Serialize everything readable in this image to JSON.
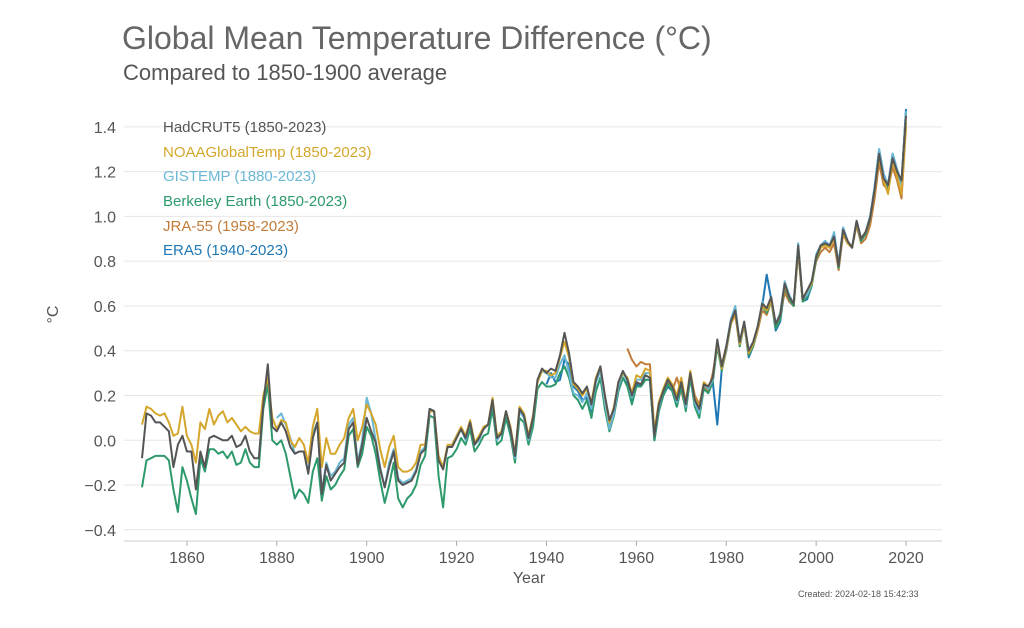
{
  "chart_data": {
    "type": "line",
    "title": "Global Mean Temperature Difference (°C)",
    "subtitle": "Compared to 1850-1900 average",
    "xlabel": "Year",
    "ylabel": "°C",
    "xlim": [
      1846,
      2028
    ],
    "ylim": [
      -0.45,
      1.52
    ],
    "x_ticks": [
      1860,
      1880,
      1900,
      1920,
      1940,
      1960,
      1980,
      2000,
      2020
    ],
    "y_ticks": [
      -0.4,
      -0.2,
      0.0,
      0.2,
      0.4,
      0.6,
      0.8,
      1.0,
      1.2,
      1.4
    ],
    "y_tick_labels": [
      "−0.4",
      "−0.2",
      "0.0",
      "0.2",
      "0.4",
      "0.6",
      "0.8",
      "1.0",
      "1.2",
      "1.4"
    ],
    "grid": true,
    "legend_position": "top-left",
    "created": "Created: 2024-02-18 15:42:33",
    "series": [
      {
        "name": "HadCRUT5 (1850-2023)",
        "color": "#555555",
        "start": 1850,
        "values": [
          -0.08,
          0.12,
          0.11,
          0.08,
          0.08,
          0.06,
          0.04,
          -0.12,
          -0.02,
          0.02,
          -0.05,
          -0.05,
          -0.22,
          -0.05,
          -0.12,
          0.01,
          0.02,
          0.01,
          0.0,
          0.0,
          0.02,
          -0.03,
          -0.02,
          0.02,
          -0.05,
          -0.08,
          -0.08,
          0.16,
          0.34,
          0.06,
          0.04,
          0.08,
          0.04,
          -0.03,
          -0.06,
          -0.05,
          -0.05,
          -0.15,
          0.01,
          0.08,
          -0.24,
          -0.11,
          -0.18,
          -0.15,
          -0.12,
          -0.1,
          0.05,
          0.08,
          -0.11,
          -0.02,
          0.1,
          0.04,
          -0.01,
          -0.13,
          -0.21,
          -0.12,
          -0.05,
          -0.18,
          -0.2,
          -0.19,
          -0.18,
          -0.14,
          -0.06,
          -0.04,
          0.14,
          0.13,
          -0.09,
          -0.13,
          -0.03,
          -0.03,
          0.01,
          0.05,
          0.01,
          0.08,
          -0.02,
          0.01,
          0.05,
          0.07,
          0.18,
          0.01,
          0.03,
          0.13,
          0.05,
          -0.07,
          0.14,
          0.11,
          0.01,
          0.1,
          0.27,
          0.32,
          0.3,
          0.32,
          0.31,
          0.38,
          0.48,
          0.39,
          0.26,
          0.24,
          0.21,
          0.24,
          0.16,
          0.27,
          0.33,
          0.2,
          0.09,
          0.14,
          0.26,
          0.31,
          0.27,
          0.2,
          0.26,
          0.25,
          0.29,
          0.28,
          0.02,
          0.16,
          0.22,
          0.27,
          0.24,
          0.18,
          0.26,
          0.16,
          0.3,
          0.18,
          0.14,
          0.25,
          0.24,
          0.28,
          0.45,
          0.33,
          0.42,
          0.53,
          0.58,
          0.44,
          0.53,
          0.4,
          0.44,
          0.51,
          0.61,
          0.59,
          0.64,
          0.52,
          0.56,
          0.7,
          0.64,
          0.61,
          0.87,
          0.63,
          0.67,
          0.71,
          0.82,
          0.87,
          0.88,
          0.87,
          0.91,
          0.78,
          0.94,
          0.89,
          0.86,
          0.98,
          0.9,
          0.93,
          0.99,
          1.12,
          1.28,
          1.17,
          1.14,
          1.26,
          1.2,
          1.16,
          1.45
        ]
      },
      {
        "name": "NOAAGlobalTemp (1850-2023)",
        "color": "#d4a72c",
        "start": 1850,
        "values": [
          0.07,
          0.15,
          0.14,
          0.12,
          0.11,
          0.12,
          0.08,
          0.02,
          0.03,
          0.15,
          0.02,
          -0.02,
          -0.1,
          0.08,
          0.05,
          0.14,
          0.07,
          0.11,
          0.13,
          0.08,
          0.1,
          0.07,
          0.04,
          0.06,
          0.04,
          0.03,
          0.03,
          0.2,
          0.28,
          0.1,
          0.05,
          0.09,
          0.08,
          0.0,
          -0.03,
          0.01,
          -0.02,
          -0.1,
          0.06,
          0.14,
          -0.12,
          0.01,
          -0.06,
          -0.06,
          -0.02,
          0.01,
          0.1,
          0.14,
          0.0,
          0.06,
          0.16,
          0.12,
          0.07,
          -0.04,
          -0.12,
          -0.03,
          0.02,
          -0.12,
          -0.14,
          -0.14,
          -0.13,
          -0.1,
          -0.02,
          -0.02,
          0.13,
          0.13,
          -0.07,
          -0.12,
          -0.02,
          -0.02,
          0.02,
          0.06,
          0.02,
          0.09,
          -0.01,
          0.02,
          0.06,
          0.07,
          0.19,
          0.02,
          0.04,
          0.13,
          0.06,
          -0.06,
          0.15,
          0.12,
          0.02,
          0.11,
          0.26,
          0.31,
          0.31,
          0.29,
          0.3,
          0.37,
          0.44,
          0.37,
          0.25,
          0.23,
          0.2,
          0.23,
          0.17,
          0.28,
          0.33,
          0.2,
          0.08,
          0.15,
          0.26,
          0.3,
          0.28,
          0.21,
          0.29,
          0.28,
          0.32,
          0.31,
          0.04,
          0.17,
          0.23,
          0.28,
          0.25,
          0.2,
          0.28,
          0.17,
          0.31,
          0.19,
          0.15,
          0.26,
          0.24,
          0.28,
          0.44,
          0.32,
          0.41,
          0.52,
          0.57,
          0.43,
          0.52,
          0.39,
          0.43,
          0.5,
          0.6,
          0.58,
          0.62,
          0.52,
          0.56,
          0.69,
          0.64,
          0.61,
          0.86,
          0.63,
          0.67,
          0.7,
          0.82,
          0.86,
          0.87,
          0.86,
          0.9,
          0.78,
          0.93,
          0.88,
          0.86,
          0.97,
          0.9,
          0.93,
          0.99,
          1.11,
          1.27,
          1.16,
          1.1,
          1.25,
          1.18,
          1.1,
          1.42
        ]
      },
      {
        "name": "GISTEMP (1880-2023)",
        "color": "#6bb7d6",
        "start": 1880,
        "values": [
          0.1,
          0.12,
          0.07,
          0.01,
          -0.06,
          -0.05,
          -0.05,
          -0.14,
          0.03,
          0.08,
          -0.23,
          -0.1,
          -0.16,
          -0.14,
          -0.1,
          -0.08,
          0.07,
          0.1,
          -0.1,
          0.0,
          0.19,
          0.12,
          0.0,
          -0.12,
          -0.21,
          -0.1,
          -0.04,
          -0.17,
          -0.19,
          -0.18,
          -0.17,
          -0.13,
          -0.05,
          -0.03,
          0.14,
          0.13,
          -0.09,
          -0.12,
          -0.03,
          -0.02,
          0.02,
          0.05,
          0.0,
          0.08,
          -0.02,
          0.0,
          0.06,
          0.07,
          0.18,
          0.0,
          0.03,
          0.13,
          0.05,
          -0.08,
          0.13,
          0.1,
          0.0,
          0.1,
          0.26,
          0.31,
          0.3,
          0.28,
          0.28,
          0.34,
          0.38,
          0.3,
          0.21,
          0.2,
          0.17,
          0.21,
          0.14,
          0.26,
          0.31,
          0.17,
          0.05,
          0.12,
          0.24,
          0.3,
          0.27,
          0.19,
          0.27,
          0.27,
          0.3,
          0.3,
          0.02,
          0.15,
          0.22,
          0.27,
          0.24,
          0.17,
          0.27,
          0.15,
          0.3,
          0.17,
          0.12,
          0.25,
          0.23,
          0.27,
          0.44,
          0.32,
          0.42,
          0.54,
          0.6,
          0.43,
          0.52,
          0.39,
          0.43,
          0.5,
          0.62,
          0.58,
          0.63,
          0.52,
          0.57,
          0.71,
          0.65,
          0.61,
          0.88,
          0.63,
          0.65,
          0.7,
          0.83,
          0.87,
          0.89,
          0.87,
          0.93,
          0.79,
          0.95,
          0.89,
          0.86,
          0.98,
          0.9,
          0.93,
          0.99,
          1.13,
          1.3,
          1.19,
          1.14,
          1.28,
          1.21,
          1.14,
          1.47
        ]
      },
      {
        "name": "Berkeley Earth (1850-2023)",
        "color": "#2e9a6c",
        "start": 1850,
        "values": [
          -0.21,
          -0.09,
          -0.08,
          -0.07,
          -0.07,
          -0.07,
          -0.09,
          -0.22,
          -0.32,
          -0.12,
          -0.18,
          -0.26,
          -0.33,
          -0.08,
          -0.14,
          -0.04,
          -0.04,
          -0.06,
          -0.05,
          -0.08,
          -0.05,
          -0.11,
          -0.1,
          -0.04,
          -0.1,
          -0.12,
          -0.12,
          0.14,
          0.25,
          0.0,
          -0.02,
          0.0,
          -0.06,
          -0.16,
          -0.26,
          -0.22,
          -0.24,
          -0.28,
          -0.14,
          -0.08,
          -0.27,
          -0.16,
          -0.22,
          -0.2,
          -0.16,
          -0.13,
          0.02,
          0.05,
          -0.12,
          -0.06,
          0.06,
          0.02,
          -0.06,
          -0.18,
          -0.28,
          -0.2,
          -0.1,
          -0.26,
          -0.3,
          -0.26,
          -0.24,
          -0.2,
          -0.11,
          -0.07,
          0.11,
          0.1,
          -0.16,
          -0.3,
          -0.08,
          -0.07,
          -0.04,
          0.01,
          -0.02,
          0.05,
          -0.05,
          -0.02,
          0.02,
          0.03,
          0.14,
          -0.02,
          0.0,
          0.1,
          0.02,
          -0.1,
          0.1,
          0.08,
          -0.02,
          0.06,
          0.23,
          0.26,
          0.24,
          0.24,
          0.25,
          0.3,
          0.33,
          0.28,
          0.2,
          0.18,
          0.14,
          0.18,
          0.1,
          0.22,
          0.28,
          0.14,
          0.04,
          0.11,
          0.22,
          0.28,
          0.24,
          0.16,
          0.24,
          0.24,
          0.27,
          0.27,
          0.0,
          0.13,
          0.2,
          0.25,
          0.22,
          0.15,
          0.24,
          0.13,
          0.28,
          0.15,
          0.1,
          0.23,
          0.21,
          0.26,
          0.42,
          0.31,
          0.41,
          0.52,
          0.58,
          0.42,
          0.52,
          0.38,
          0.42,
          0.5,
          0.6,
          0.57,
          0.62,
          0.5,
          0.54,
          0.69,
          0.63,
          0.6,
          0.86,
          0.62,
          0.64,
          0.69,
          0.81,
          0.86,
          0.88,
          0.86,
          0.91,
          0.77,
          0.94,
          0.89,
          0.86,
          0.97,
          0.89,
          0.92,
          0.99,
          1.12,
          1.29,
          1.18,
          1.13,
          1.27,
          1.19,
          1.15,
          1.47
        ]
      },
      {
        "name": "JRA-55 (1958-2023)",
        "color": "#c27c3a",
        "start": 1958,
        "values": [
          0.41,
          0.36,
          0.33,
          0.35,
          0.34,
          0.34,
          0.04,
          0.14,
          0.22,
          0.26,
          0.22,
          0.28,
          0.22,
          0.14,
          0.3,
          0.2,
          0.16,
          0.24,
          0.22,
          0.3,
          0.42,
          0.34,
          0.42,
          0.52,
          0.56,
          0.42,
          0.52,
          0.38,
          0.42,
          0.49,
          0.58,
          0.56,
          0.62,
          0.52,
          0.56,
          0.66,
          0.62,
          0.6,
          0.84,
          0.62,
          0.66,
          0.7,
          0.8,
          0.84,
          0.86,
          0.84,
          0.88,
          0.76,
          0.92,
          0.88,
          0.86,
          0.96,
          0.88,
          0.9,
          0.96,
          1.08,
          1.24,
          1.14,
          1.12,
          1.22,
          1.16,
          1.08,
          1.4
        ]
      },
      {
        "name": "ERA5 (1940-2023)",
        "color": "#1f77b4",
        "start": 1940,
        "values": [
          0.25,
          0.3,
          0.26,
          0.27,
          0.36,
          0.34,
          0.24,
          0.22,
          0.18,
          0.19,
          0.13,
          0.22,
          0.28,
          0.16,
          0.06,
          0.11,
          0.22,
          0.28,
          0.25,
          0.18,
          0.25,
          0.24,
          0.27,
          0.27,
          0.0,
          0.13,
          0.2,
          0.24,
          0.22,
          0.15,
          0.24,
          0.14,
          0.28,
          0.16,
          0.12,
          0.24,
          0.22,
          0.26,
          0.07,
          0.32,
          0.4,
          0.52,
          0.58,
          0.42,
          0.52,
          0.37,
          0.42,
          0.5,
          0.6,
          0.74,
          0.63,
          0.49,
          0.53,
          0.68,
          0.62,
          0.6,
          0.86,
          0.62,
          0.63,
          0.69,
          0.82,
          0.87,
          0.89,
          0.87,
          0.92,
          0.78,
          0.95,
          0.89,
          0.86,
          0.98,
          0.9,
          0.93,
          1.0,
          1.13,
          1.3,
          1.19,
          1.14,
          1.28,
          1.21,
          1.15,
          1.48
        ]
      }
    ]
  }
}
